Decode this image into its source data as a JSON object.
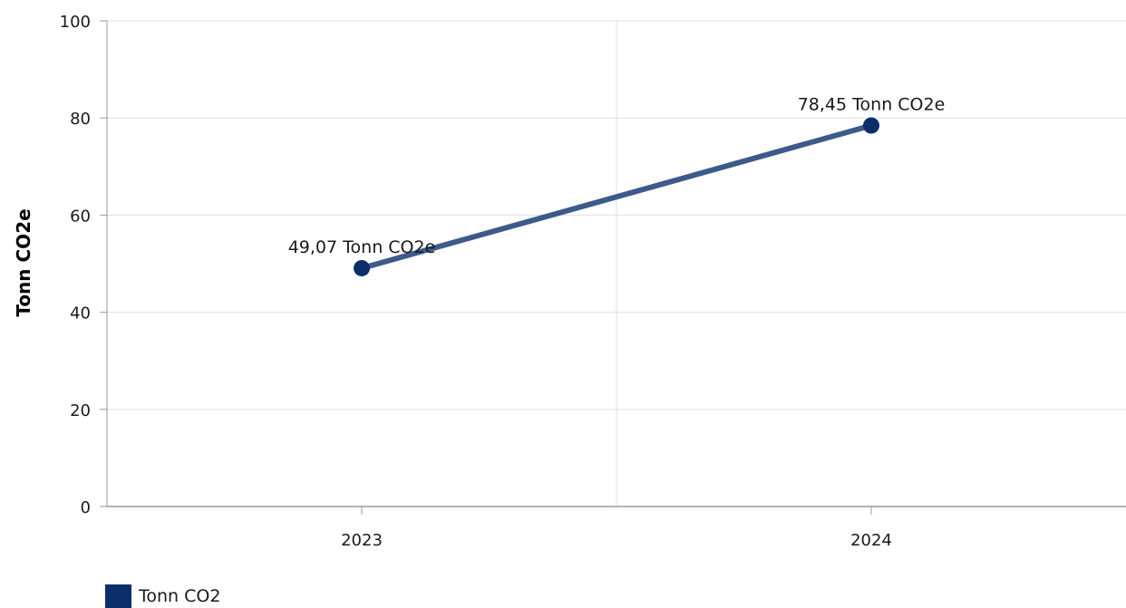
{
  "chart_data": {
    "type": "line",
    "categories": [
      "2023",
      "2024"
    ],
    "series": [
      {
        "name": "Tonn CO2",
        "values": [
          49.07,
          78.45
        ],
        "data_labels": [
          "49,07 Tonn CO2e",
          "78,45 Tonn CO2e"
        ],
        "line_color": "#3d5a8a",
        "marker_color": "#0b2e6b"
      }
    ],
    "ylabel": "Tonn CO2e",
    "xlabel": "",
    "ylim": [
      0,
      100
    ],
    "yticks": [
      0,
      20,
      40,
      60,
      80,
      100
    ],
    "grid": true,
    "legend_position": "bottom-left",
    "legend_color": "#0b2e6b"
  }
}
